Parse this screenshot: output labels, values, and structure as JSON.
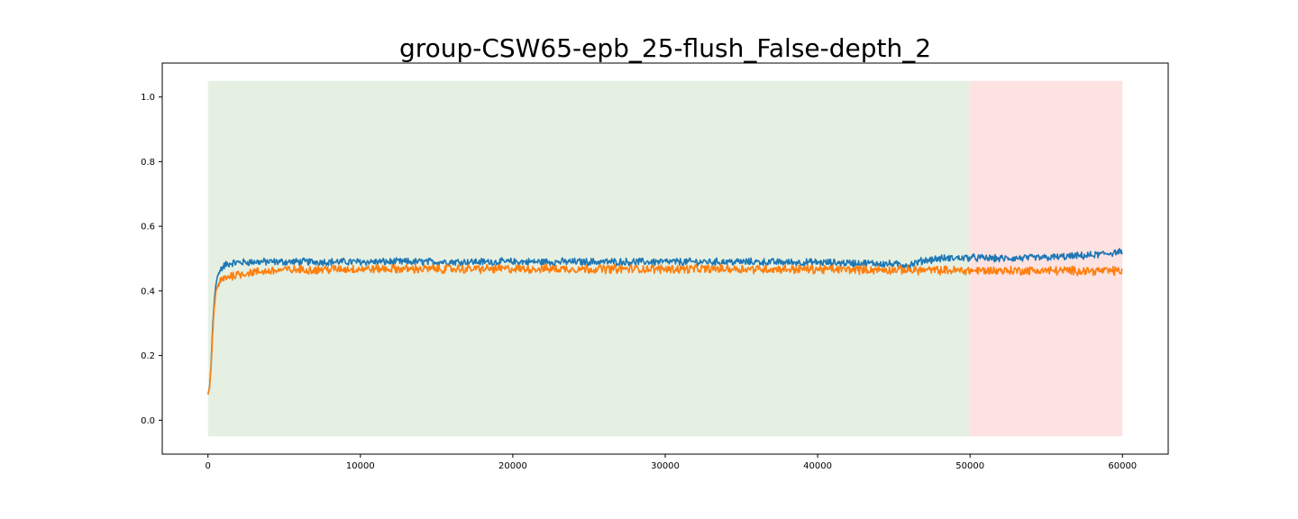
{
  "chart_data": {
    "type": "line",
    "title": "group-CSW65-epb_25-flush_False-depth_2",
    "xlabel": "",
    "ylabel": "",
    "xlim": [
      -3000,
      63000
    ],
    "ylim": [
      -0.105,
      1.105
    ],
    "x_ticks": [
      0,
      10000,
      20000,
      30000,
      40000,
      50000,
      60000
    ],
    "x_tick_labels": [
      "0",
      "10000",
      "20000",
      "30000",
      "40000",
      "50000",
      "60000"
    ],
    "y_ticks": [
      0.0,
      0.2,
      0.4,
      0.6,
      0.8,
      1.0
    ],
    "y_tick_labels": [
      "0.0",
      "0.2",
      "0.4",
      "0.6",
      "0.8",
      "1.0"
    ],
    "grid": false,
    "shaded_regions": [
      {
        "x_start": 0,
        "x_end": 50000,
        "y_start": -0.05,
        "y_end": 1.05,
        "color": "#e5f0e3"
      },
      {
        "x_start": 50000,
        "x_end": 60000,
        "y_start": -0.05,
        "y_end": 1.05,
        "color": "#fde2e2"
      }
    ],
    "series": [
      {
        "color": "#1f77b4",
        "x": [
          0,
          100,
          200,
          300,
          400,
          500,
          600,
          700,
          800,
          1000,
          1200,
          1500,
          2000,
          3000,
          5000,
          10000,
          15000,
          20000,
          25000,
          30000,
          35000,
          40000,
          44000,
          46000,
          47000,
          48000,
          50000,
          52000,
          55000,
          58000,
          60000
        ],
        "y": [
          0.08,
          0.1,
          0.17,
          0.28,
          0.36,
          0.41,
          0.44,
          0.455,
          0.465,
          0.475,
          0.482,
          0.486,
          0.488,
          0.49,
          0.49,
          0.49,
          0.49,
          0.49,
          0.49,
          0.49,
          0.49,
          0.488,
          0.485,
          0.48,
          0.495,
          0.5,
          0.503,
          0.5,
          0.503,
          0.51,
          0.522
        ],
        "noise": 0.01
      },
      {
        "color": "#ff7f0e",
        "x": [
          0,
          100,
          200,
          300,
          400,
          500,
          600,
          700,
          800,
          1000,
          1200,
          1500,
          2000,
          3000,
          5000,
          10000,
          15000,
          20000,
          25000,
          30000,
          35000,
          40000,
          45000,
          50000,
          55000,
          60000
        ],
        "y": [
          0.08,
          0.1,
          0.16,
          0.26,
          0.34,
          0.39,
          0.41,
          0.42,
          0.43,
          0.437,
          0.442,
          0.447,
          0.452,
          0.458,
          0.465,
          0.468,
          0.468,
          0.468,
          0.468,
          0.468,
          0.468,
          0.467,
          0.465,
          0.463,
          0.463,
          0.462
        ],
        "noise": 0.012
      }
    ]
  }
}
